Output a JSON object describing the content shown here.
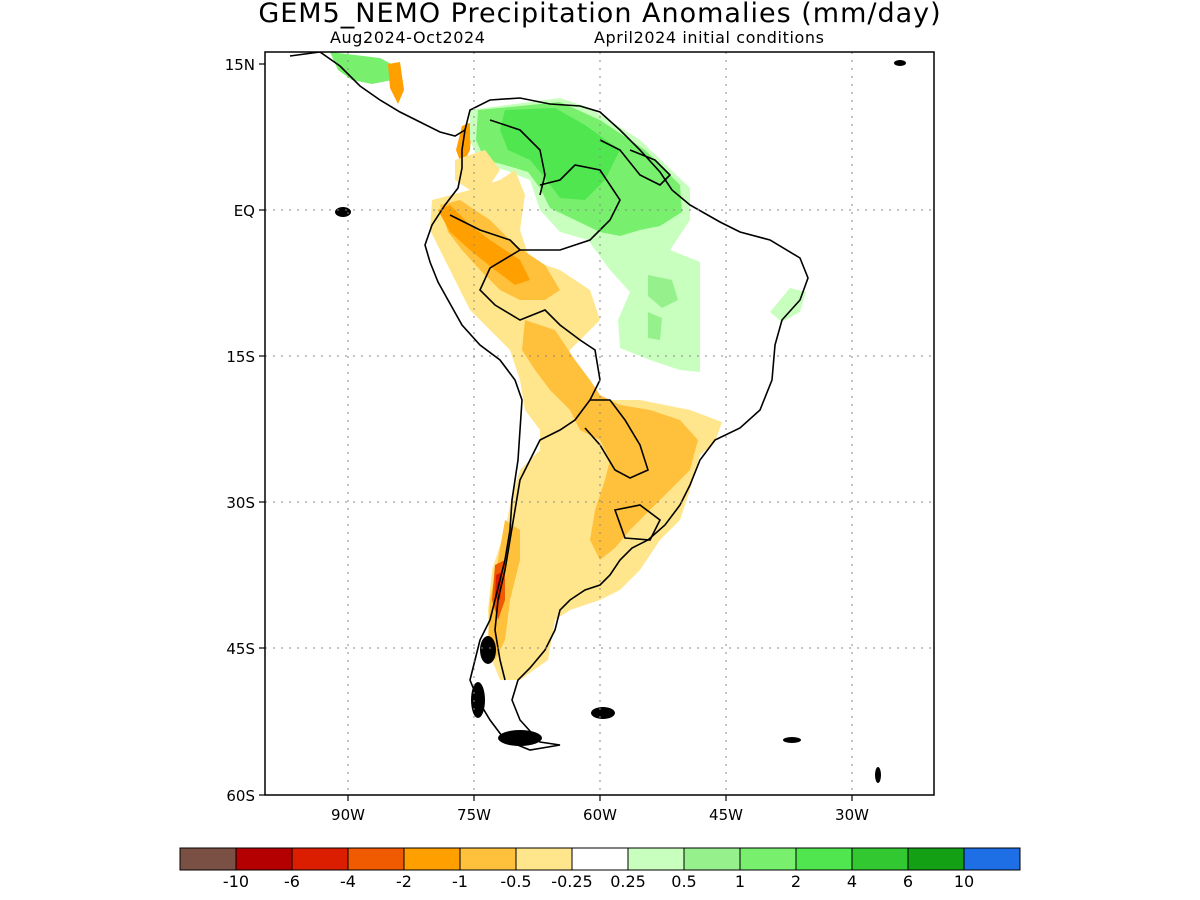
{
  "title": "GEM5_NEMO Precipitation Anomalies (mm/day)",
  "period": "Aug2024-Oct2024",
  "init": "April2024 initial conditions",
  "map": {
    "lon_labels": [
      "90W",
      "75W",
      "60W",
      "45W",
      "30W"
    ],
    "lat_labels": [
      "15N",
      "EQ",
      "15S",
      "30S",
      "45S",
      "60S"
    ],
    "lon_range": [
      -100,
      -20
    ],
    "lat_range": [
      -60,
      15
    ],
    "grid": "dotted"
  },
  "colorbar": {
    "colors": [
      "#7a5044",
      "#b40000",
      "#dc1e00",
      "#f05a00",
      "#ffa000",
      "#ffc03c",
      "#ffe68c",
      "#ffffff",
      "#c8ffbe",
      "#96f08c",
      "#78f06e",
      "#50e650",
      "#32c832",
      "#14a014",
      "#1e6ee6"
    ],
    "labels": [
      "-10",
      "-6",
      "-4",
      "-2",
      "-1",
      "-0.5",
      "-0.25",
      "0.25",
      "0.5",
      "1",
      "2",
      "4",
      "6",
      "10"
    ]
  }
}
